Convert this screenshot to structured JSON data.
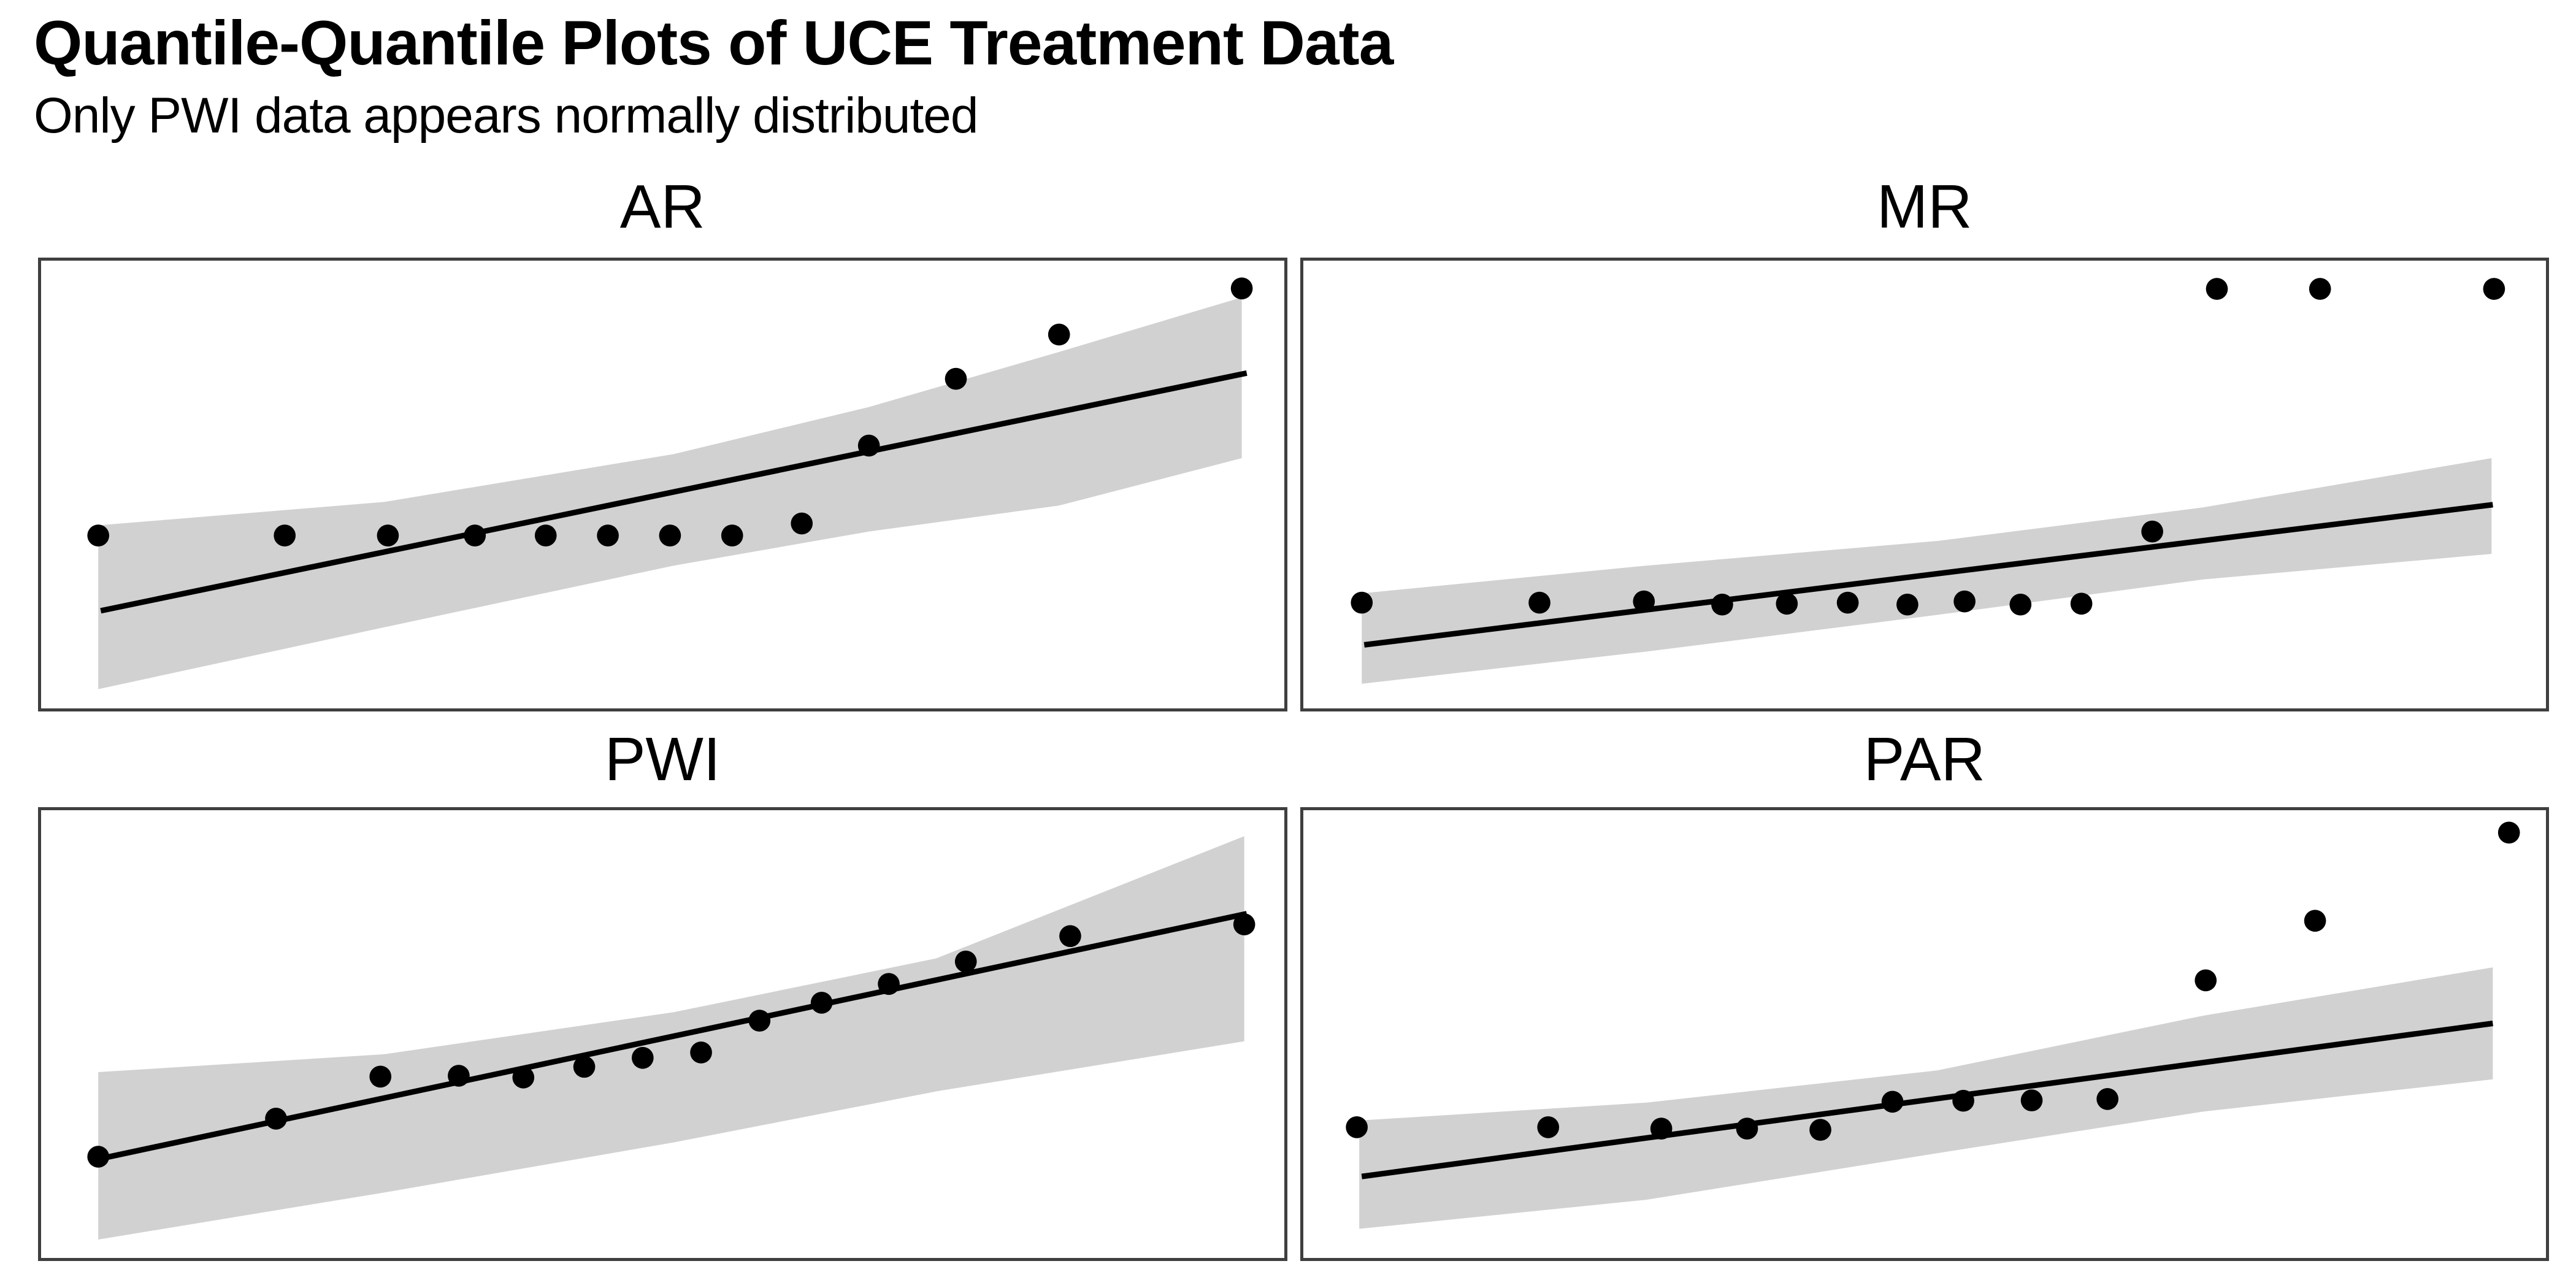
{
  "header": {
    "title": "Quantile-Quantile Plots of UCE Treatment Data",
    "subtitle": "Only PWI data appears normally distributed"
  },
  "chart_data": {
    "type": "scatter",
    "subtype": "qq-plot-facets",
    "title": "Quantile-Quantile Plots of UCE Treatment Data",
    "subtitle": "Only PWI data appears normally distributed",
    "layout": "2x2 faceted panels, facet label centered above each panel",
    "axes": {
      "ticks_shown": false,
      "tick_labels_shown": false,
      "axis_titles_shown": false
    },
    "coordinate_system": "normalized panel coordinates, x 0-1 left to right, y 0-1 top to bottom",
    "style": {
      "band_fill": "#d1d1d1",
      "line_color": "#000000",
      "point_color": "#000000",
      "panel_border_color": "#3f3f3f",
      "panel_border_px": 5,
      "background": "#ffffff"
    },
    "panels": [
      {
        "id": "ar",
        "title": "AR",
        "points": [
          [
            0.046,
            0.614
          ],
          [
            0.196,
            0.614
          ],
          [
            0.279,
            0.614
          ],
          [
            0.349,
            0.614
          ],
          [
            0.406,
            0.614
          ],
          [
            0.456,
            0.614
          ],
          [
            0.506,
            0.614
          ],
          [
            0.556,
            0.614
          ],
          [
            0.612,
            0.587
          ],
          [
            0.666,
            0.413
          ],
          [
            0.736,
            0.264
          ],
          [
            0.819,
            0.165
          ],
          [
            0.966,
            0.062
          ]
        ],
        "line": {
          "x1": 0.048,
          "y1": 0.782,
          "x2": 0.97,
          "y2": 0.251
        },
        "band_upper": [
          [
            0.046,
            0.591
          ],
          [
            0.276,
            0.539
          ],
          [
            0.509,
            0.432
          ],
          [
            0.666,
            0.327
          ],
          [
            0.819,
            0.204
          ],
          [
            0.966,
            0.082
          ]
        ],
        "band_lower": [
          [
            0.046,
            0.957
          ],
          [
            0.276,
            0.819
          ],
          [
            0.509,
            0.681
          ],
          [
            0.666,
            0.605
          ],
          [
            0.819,
            0.547
          ],
          [
            0.966,
            0.441
          ]
        ]
      },
      {
        "id": "mr",
        "title": "MR",
        "points": [
          [
            0.047,
            0.764
          ],
          [
            0.19,
            0.764
          ],
          [
            0.274,
            0.761
          ],
          [
            0.337,
            0.768
          ],
          [
            0.389,
            0.766
          ],
          [
            0.438,
            0.764
          ],
          [
            0.486,
            0.768
          ],
          [
            0.532,
            0.761
          ],
          [
            0.577,
            0.768
          ],
          [
            0.626,
            0.766
          ],
          [
            0.683,
            0.605
          ],
          [
            0.735,
            0.063
          ],
          [
            0.818,
            0.063
          ],
          [
            0.958,
            0.063
          ]
        ],
        "line": {
          "x1": 0.049,
          "y1": 0.858,
          "x2": 0.957,
          "y2": 0.545
        },
        "band_upper": [
          [
            0.047,
            0.743
          ],
          [
            0.276,
            0.681
          ],
          [
            0.51,
            0.626
          ],
          [
            0.724,
            0.551
          ],
          [
            0.956,
            0.441
          ]
        ],
        "band_lower": [
          [
            0.047,
            0.945
          ],
          [
            0.276,
            0.873
          ],
          [
            0.51,
            0.791
          ],
          [
            0.724,
            0.712
          ],
          [
            0.956,
            0.655
          ]
        ]
      },
      {
        "id": "pwi",
        "title": "PWI",
        "points": [
          [
            0.046,
            0.774
          ],
          [
            0.189,
            0.689
          ],
          [
            0.273,
            0.595
          ],
          [
            0.336,
            0.593
          ],
          [
            0.388,
            0.597
          ],
          [
            0.437,
            0.573
          ],
          [
            0.484,
            0.553
          ],
          [
            0.531,
            0.541
          ],
          [
            0.578,
            0.47
          ],
          [
            0.628,
            0.43
          ],
          [
            0.682,
            0.388
          ],
          [
            0.744,
            0.338
          ],
          [
            0.828,
            0.281
          ],
          [
            0.968,
            0.255
          ]
        ],
        "line": {
          "x1": 0.048,
          "y1": 0.778,
          "x2": 0.97,
          "y2": 0.231
        },
        "band_upper": [
          [
            0.046,
            0.585
          ],
          [
            0.276,
            0.545
          ],
          [
            0.509,
            0.451
          ],
          [
            0.72,
            0.331
          ],
          [
            0.968,
            0.058
          ]
        ],
        "band_lower": [
          [
            0.046,
            0.959
          ],
          [
            0.276,
            0.854
          ],
          [
            0.509,
            0.742
          ],
          [
            0.72,
            0.628
          ],
          [
            0.968,
            0.516
          ]
        ]
      },
      {
        "id": "par",
        "title": "PAR",
        "points": [
          [
            0.043,
            0.708
          ],
          [
            0.197,
            0.708
          ],
          [
            0.288,
            0.711
          ],
          [
            0.357,
            0.711
          ],
          [
            0.416,
            0.714
          ],
          [
            0.474,
            0.651
          ],
          [
            0.531,
            0.649
          ],
          [
            0.586,
            0.648
          ],
          [
            0.647,
            0.645
          ],
          [
            0.726,
            0.38
          ],
          [
            0.814,
            0.247
          ],
          [
            0.97,
            0.05
          ]
        ],
        "line": {
          "x1": 0.047,
          "y1": 0.818,
          "x2": 0.957,
          "y2": 0.476
        },
        "band_upper": [
          [
            0.045,
            0.693
          ],
          [
            0.276,
            0.653
          ],
          [
            0.51,
            0.581
          ],
          [
            0.724,
            0.459
          ],
          [
            0.957,
            0.351
          ]
        ],
        "band_lower": [
          [
            0.045,
            0.935
          ],
          [
            0.276,
            0.87
          ],
          [
            0.51,
            0.766
          ],
          [
            0.724,
            0.673
          ],
          [
            0.957,
            0.601
          ]
        ]
      }
    ]
  }
}
